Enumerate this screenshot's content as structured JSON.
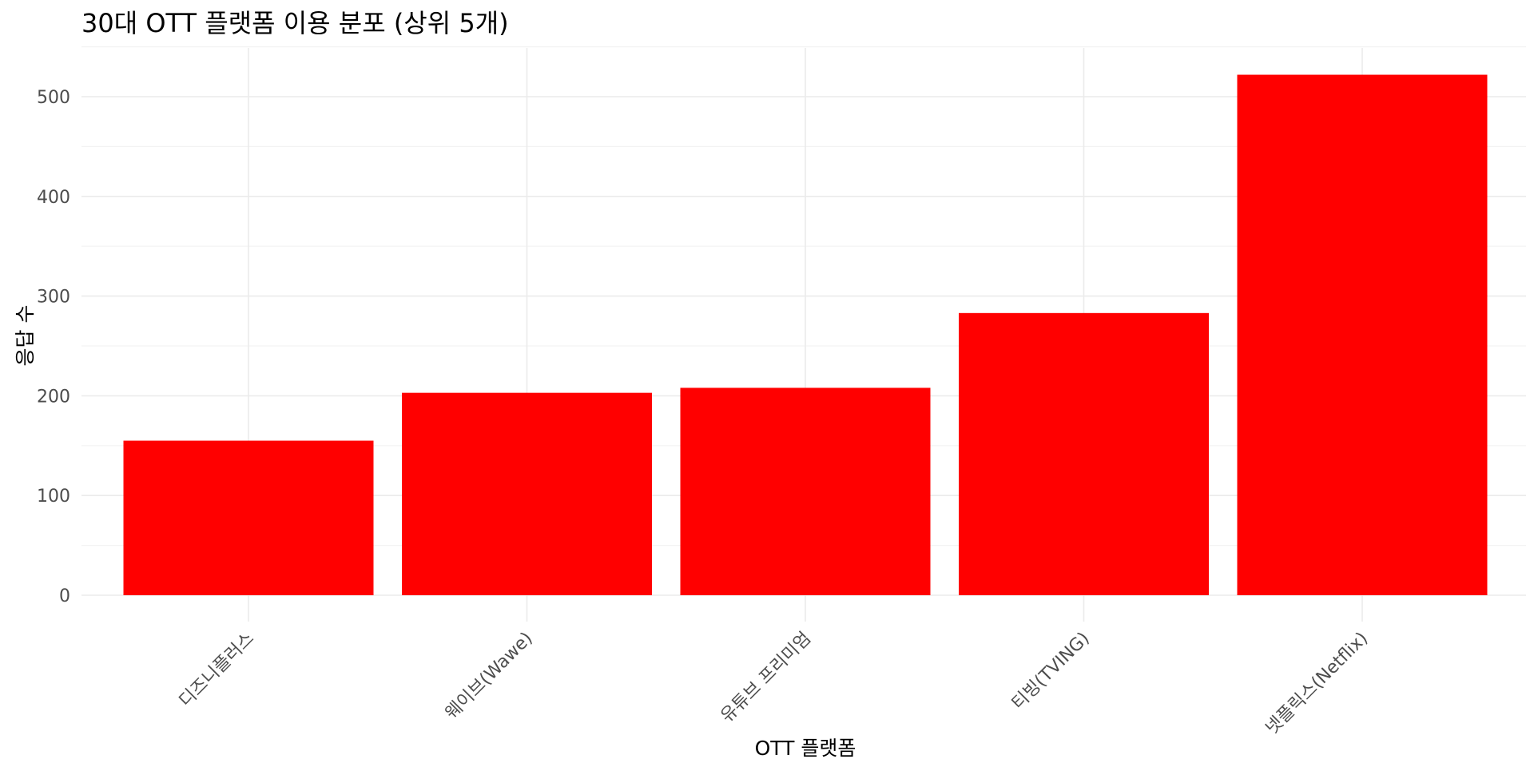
{
  "chart_data": {
    "type": "bar",
    "title": "30대 OTT 플랫폼 이용 분포 (상위 5개)",
    "xlabel": "OTT 플랫폼",
    "ylabel": "응답 수",
    "categories": [
      "디즈니플러스",
      "웨이브(Wawe)",
      "유튜브 프리미엄",
      "티빙(TVING)",
      "넷플릭스(Netflix)"
    ],
    "values": [
      155,
      203,
      208,
      283,
      522
    ],
    "ylim": [
      0,
      550
    ],
    "yticks": [
      0,
      100,
      200,
      300,
      400,
      500
    ],
    "grid": true,
    "bar_color": "#ff0000"
  }
}
